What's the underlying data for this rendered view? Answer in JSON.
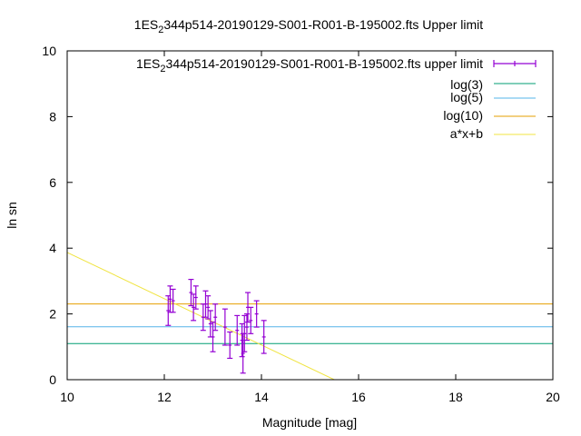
{
  "chart_data": {
    "type": "scatter",
    "title": "1ES",
    "title_sub": "2",
    "title_rest": "344p514-20190129-S001-R001-B-195002.fts Upper limit",
    "xlabel": "Magnitude [mag]",
    "ylabel": "ln sn",
    "xlim": [
      10,
      20
    ],
    "ylim": [
      0,
      10
    ],
    "xticks": [
      "10",
      "12",
      "14",
      "16",
      "18",
      "20"
    ],
    "yticks": [
      "0",
      "2",
      "4",
      "6",
      "8",
      "10"
    ],
    "grid": false,
    "legend_position": "top-right",
    "series": [
      {
        "name_main": "1ES",
        "name_sub": "2",
        "name_rest": "344p514-20190129-S001-R001-B-195002.fts upper limit",
        "kind": "errorbars",
        "color": "#9400d3",
        "points": [
          {
            "x": 12.08,
            "y": 2.1,
            "err": 0.45
          },
          {
            "x": 12.12,
            "y": 2.45,
            "err": 0.4
          },
          {
            "x": 12.18,
            "y": 2.4,
            "err": 0.35
          },
          {
            "x": 12.55,
            "y": 2.65,
            "err": 0.4
          },
          {
            "x": 12.6,
            "y": 2.2,
            "err": 0.4
          },
          {
            "x": 12.65,
            "y": 2.5,
            "err": 0.35
          },
          {
            "x": 12.8,
            "y": 1.9,
            "err": 0.4
          },
          {
            "x": 12.85,
            "y": 2.3,
            "err": 0.4
          },
          {
            "x": 12.9,
            "y": 2.2,
            "err": 0.35
          },
          {
            "x": 12.95,
            "y": 1.7,
            "err": 0.4
          },
          {
            "x": 13.0,
            "y": 1.3,
            "err": 0.45
          },
          {
            "x": 13.05,
            "y": 1.9,
            "err": 0.4
          },
          {
            "x": 13.25,
            "y": 1.6,
            "err": 0.55
          },
          {
            "x": 13.35,
            "y": 1.05,
            "err": 0.4
          },
          {
            "x": 13.5,
            "y": 1.5,
            "err": 0.45
          },
          {
            "x": 13.6,
            "y": 1.2,
            "err": 0.5
          },
          {
            "x": 13.62,
            "y": 0.8,
            "err": 0.6
          },
          {
            "x": 13.65,
            "y": 1.4,
            "err": 0.55
          },
          {
            "x": 13.7,
            "y": 1.6,
            "err": 0.4
          },
          {
            "x": 13.72,
            "y": 2.2,
            "err": 0.45
          },
          {
            "x": 13.78,
            "y": 1.8,
            "err": 0.4
          },
          {
            "x": 13.9,
            "y": 2.0,
            "err": 0.4
          },
          {
            "x": 14.05,
            "y": 1.3,
            "err": 0.5
          }
        ]
      },
      {
        "name": "log(3)",
        "kind": "hline",
        "y": 1.0986,
        "color": "#009e73"
      },
      {
        "name": "log(5)",
        "kind": "hline",
        "y": 1.6094,
        "color": "#56b4e9"
      },
      {
        "name": "log(10)",
        "kind": "hline",
        "y": 2.3026,
        "color": "#e69f00"
      },
      {
        "name": "a*x+b",
        "kind": "line",
        "points": [
          [
            10,
            3.87
          ],
          [
            15.5,
            0.0
          ]
        ],
        "color": "#f0e442"
      }
    ]
  }
}
